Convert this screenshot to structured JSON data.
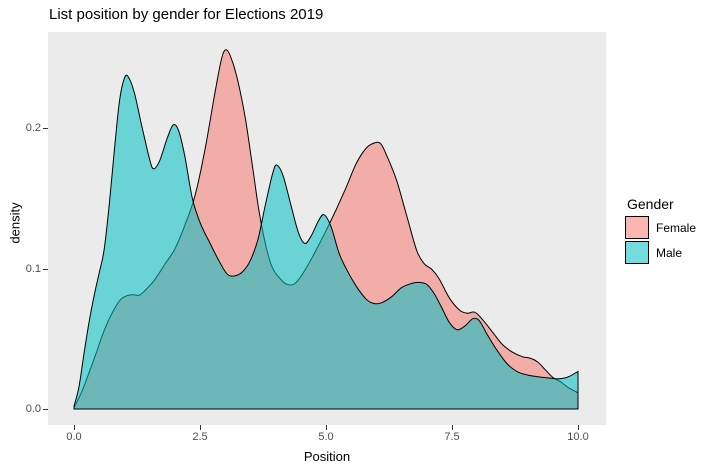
{
  "title": "List position by gender for Elections 2019",
  "axes": {
    "x": {
      "label": "Position",
      "ticks": [
        {
          "label": "0.0",
          "value": 0
        },
        {
          "label": "2.5",
          "value": 2.5
        },
        {
          "label": "5.0",
          "value": 5
        },
        {
          "label": "7.5",
          "value": 7.5
        },
        {
          "label": "10.0",
          "value": 10
        }
      ]
    },
    "y": {
      "label": "density",
      "ticks": [
        {
          "label": "0.0",
          "value": 0
        },
        {
          "label": "0.1",
          "value": 0.1
        },
        {
          "label": "0.2",
          "value": 0.2
        }
      ]
    }
  },
  "legend": {
    "title": "Gender",
    "items": [
      {
        "label": "Female",
        "series": "Female"
      },
      {
        "label": "Male",
        "series": "Male"
      }
    ]
  },
  "colors": {
    "panel_background": "#EBEBEB",
    "outer_background": "#FFFFFF",
    "curve_outline": "#000000",
    "axis_text": "#4D4D4D",
    "tick_mark": "#333333",
    "female_fill": "#F8766D",
    "male_fill": "#00BFC4"
  },
  "chart_data": {
    "type": "area",
    "variant": "overlapping-kernel-density",
    "title": "List position by gender for Elections 2019",
    "xlabel": "Position",
    "ylabel": "density",
    "xlim": [
      0,
      10
    ],
    "ylim": [
      0,
      0.27
    ],
    "grid": false,
    "legend_position": "right",
    "series": [
      {
        "name": "Female",
        "fill": "#F8766D",
        "fill_alpha": 0.53,
        "points": [
          [
            0,
            0.001
          ],
          [
            0.15,
            0.012
          ],
          [
            0.3,
            0.026
          ],
          [
            0.45,
            0.041
          ],
          [
            0.6,
            0.056
          ],
          [
            0.75,
            0.068
          ],
          [
            0.9,
            0.077
          ],
          [
            1.0,
            0.08
          ],
          [
            1.15,
            0.0815
          ],
          [
            1.3,
            0.0812
          ],
          [
            1.45,
            0.086
          ],
          [
            1.6,
            0.092
          ],
          [
            1.8,
            0.103
          ],
          [
            2.0,
            0.114
          ],
          [
            2.2,
            0.131
          ],
          [
            2.4,
            0.152
          ],
          [
            2.6,
            0.185
          ],
          [
            2.8,
            0.226
          ],
          [
            2.93,
            0.25
          ],
          [
            3.02,
            0.256
          ],
          [
            3.12,
            0.25
          ],
          [
            3.25,
            0.234
          ],
          [
            3.4,
            0.207
          ],
          [
            3.55,
            0.171
          ],
          [
            3.7,
            0.135
          ],
          [
            3.9,
            0.104
          ],
          [
            4.1,
            0.0925
          ],
          [
            4.25,
            0.0886
          ],
          [
            4.4,
            0.09
          ],
          [
            4.6,
            0.1
          ],
          [
            4.8,
            0.113
          ],
          [
            5.0,
            0.127
          ],
          [
            5.2,
            0.142
          ],
          [
            5.4,
            0.158
          ],
          [
            5.6,
            0.175
          ],
          [
            5.8,
            0.186
          ],
          [
            5.95,
            0.1895
          ],
          [
            6.08,
            0.1893
          ],
          [
            6.2,
            0.181
          ],
          [
            6.4,
            0.163
          ],
          [
            6.6,
            0.138
          ],
          [
            6.8,
            0.113
          ],
          [
            6.95,
            0.1035
          ],
          [
            7.1,
            0.0995
          ],
          [
            7.25,
            0.0925
          ],
          [
            7.45,
            0.079
          ],
          [
            7.65,
            0.0705
          ],
          [
            7.8,
            0.0683
          ],
          [
            7.95,
            0.069
          ],
          [
            8.1,
            0.064
          ],
          [
            8.3,
            0.055
          ],
          [
            8.5,
            0.046
          ],
          [
            8.7,
            0.0405
          ],
          [
            8.9,
            0.0372
          ],
          [
            9.05,
            0.0363
          ],
          [
            9.2,
            0.0335
          ],
          [
            9.35,
            0.028
          ],
          [
            9.5,
            0.0225
          ],
          [
            9.65,
            0.0195
          ],
          [
            9.8,
            0.0155
          ],
          [
            10.0,
            0.0115
          ]
        ]
      },
      {
        "name": "Male",
        "fill": "#00BFC4",
        "fill_alpha": 0.55,
        "points": [
          [
            0,
            0.002
          ],
          [
            0.1,
            0.016
          ],
          [
            0.2,
            0.04
          ],
          [
            0.3,
            0.062
          ],
          [
            0.4,
            0.081
          ],
          [
            0.5,
            0.097
          ],
          [
            0.6,
            0.114
          ],
          [
            0.7,
            0.146
          ],
          [
            0.8,
            0.184
          ],
          [
            0.9,
            0.219
          ],
          [
            1.0,
            0.2358
          ],
          [
            1.08,
            0.2366
          ],
          [
            1.2,
            0.225
          ],
          [
            1.35,
            0.201
          ],
          [
            1.5,
            0.178
          ],
          [
            1.58,
            0.1712
          ],
          [
            1.7,
            0.177
          ],
          [
            1.85,
            0.193
          ],
          [
            1.97,
            0.2026
          ],
          [
            2.08,
            0.198
          ],
          [
            2.2,
            0.18
          ],
          [
            2.35,
            0.15
          ],
          [
            2.5,
            0.133
          ],
          [
            2.7,
            0.118
          ],
          [
            2.9,
            0.104
          ],
          [
            3.05,
            0.0958
          ],
          [
            3.2,
            0.095
          ],
          [
            3.35,
            0.098
          ],
          [
            3.5,
            0.106
          ],
          [
            3.65,
            0.121
          ],
          [
            3.8,
            0.146
          ],
          [
            3.95,
            0.169
          ],
          [
            4.03,
            0.1738
          ],
          [
            4.15,
            0.166
          ],
          [
            4.3,
            0.146
          ],
          [
            4.45,
            0.126
          ],
          [
            4.58,
            0.118
          ],
          [
            4.7,
            0.123
          ],
          [
            4.85,
            0.134
          ],
          [
            4.96,
            0.1385
          ],
          [
            5.1,
            0.13
          ],
          [
            5.25,
            0.112
          ],
          [
            5.4,
            0.1
          ],
          [
            5.6,
            0.0875
          ],
          [
            5.8,
            0.0782
          ],
          [
            5.95,
            0.0752
          ],
          [
            6.1,
            0.0757
          ],
          [
            6.3,
            0.08
          ],
          [
            6.5,
            0.0865
          ],
          [
            6.7,
            0.0895
          ],
          [
            6.85,
            0.0902
          ],
          [
            7.0,
            0.0888
          ],
          [
            7.15,
            0.082
          ],
          [
            7.3,
            0.072
          ],
          [
            7.45,
            0.0615
          ],
          [
            7.6,
            0.0565
          ],
          [
            7.75,
            0.059
          ],
          [
            7.92,
            0.0645
          ],
          [
            8.05,
            0.0625
          ],
          [
            8.2,
            0.053
          ],
          [
            8.4,
            0.0415
          ],
          [
            8.6,
            0.032
          ],
          [
            8.8,
            0.0265
          ],
          [
            9.0,
            0.0242
          ],
          [
            9.2,
            0.023
          ],
          [
            9.4,
            0.0222
          ],
          [
            9.6,
            0.0215
          ],
          [
            9.8,
            0.0228
          ],
          [
            10.0,
            0.0268
          ]
        ]
      }
    ]
  }
}
